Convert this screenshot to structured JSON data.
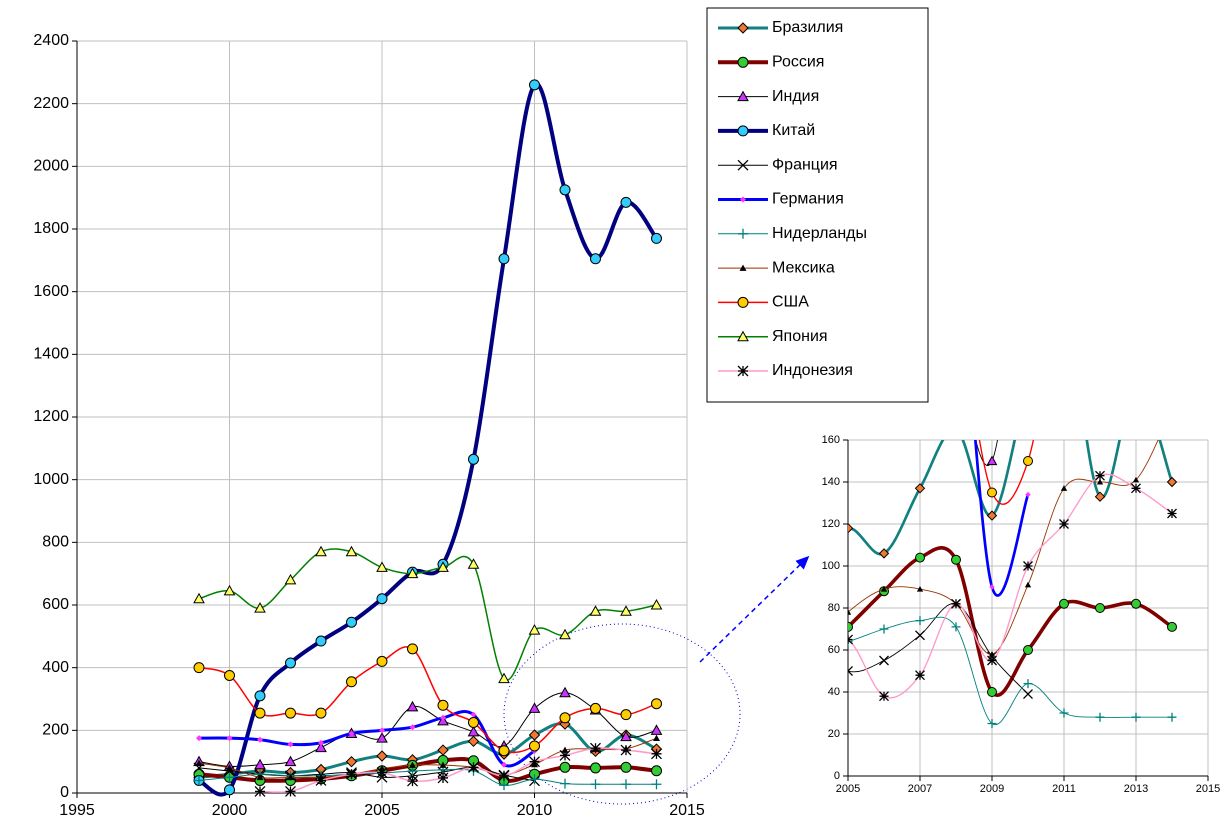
{
  "chart_data": {
    "type": "line",
    "x": [
      1999,
      2000,
      2001,
      2002,
      2003,
      2004,
      2005,
      2006,
      2007,
      2008,
      2009,
      2010,
      2011,
      2012,
      2013,
      2014
    ],
    "series": [
      {
        "name": "Бразилия",
        "color": "#138080",
        "marker": "diamond",
        "marker_color": "#f07830",
        "width": 3,
        "values": [
          50,
          60,
          70,
          65,
          75,
          100,
          118,
          106,
          137,
          165,
          124,
          185,
          220,
          133,
          185,
          140
        ]
      },
      {
        "name": "Россия",
        "color": "#800000",
        "marker": "circle",
        "marker_color": "#33cc33",
        "width": 4,
        "values": [
          60,
          50,
          40,
          40,
          45,
          55,
          71,
          88,
          104,
          103,
          40,
          60,
          82,
          80,
          82,
          71
        ]
      },
      {
        "name": "Индия",
        "color": "#000000",
        "marker": "triangle",
        "marker_color": "#cc33ff",
        "width": 1,
        "values": [
          100,
          85,
          90,
          100,
          145,
          190,
          175,
          275,
          230,
          195,
          150,
          270,
          320,
          265,
          180,
          200
        ]
      },
      {
        "name": "Китай",
        "color": "#000080",
        "marker": "circle",
        "marker_color": "#33ccff",
        "width": 4,
        "values": [
          40,
          10,
          310,
          415,
          485,
          545,
          620,
          705,
          730,
          1065,
          1705,
          2260,
          1925,
          1705,
          1885,
          1770
        ]
      },
      {
        "name": "Франция",
        "color": "#000000",
        "marker": "x",
        "marker_color": "#000000",
        "width": 1,
        "values": [
          80,
          70,
          60,
          55,
          60,
          65,
          50,
          55,
          67,
          82,
          57,
          39,
          null,
          null,
          null,
          null
        ]
      },
      {
        "name": "Германия",
        "color": "#0000ff",
        "marker": "smalldiamond",
        "marker_color": "#ff33ff",
        "width": 3,
        "values": [
          175,
          175,
          170,
          155,
          160,
          190,
          200,
          210,
          240,
          250,
          90,
          134,
          null,
          null,
          null,
          null
        ]
      },
      {
        "name": "Нидерланды",
        "color": "#008080",
        "marker": "plus",
        "marker_color": "#008080",
        "width": 1,
        "values": [
          40,
          50,
          60,
          55,
          55,
          60,
          64,
          70,
          74,
          71,
          25,
          44,
          30,
          28,
          28,
          28
        ]
      },
      {
        "name": "Мексика",
        "color": "#993300",
        "marker": "smalltriangle",
        "marker_color": "#000000",
        "width": 1,
        "values": [
          95,
          80,
          50,
          50,
          50,
          60,
          78,
          89,
          89,
          82,
          58,
          91,
          137,
          140,
          141,
          175
        ]
      },
      {
        "name": "США",
        "color": "#ff0000",
        "marker": "circle",
        "marker_color": "#ffcc00",
        "width": 1.5,
        "values": [
          400,
          375,
          255,
          255,
          255,
          355,
          420,
          460,
          280,
          225,
          135,
          150,
          240,
          270,
          250,
          285
        ]
      },
      {
        "name": "Япония",
        "color": "#008000",
        "marker": "triangle",
        "marker_color": "#ffff66",
        "width": 1.5,
        "values": [
          620,
          645,
          590,
          680,
          770,
          770,
          720,
          700,
          720,
          730,
          365,
          520,
          505,
          580,
          580,
          600
        ]
      },
      {
        "name": "Индонезия",
        "color": "#ff99cc",
        "marker": "star",
        "marker_color": "#000000",
        "width": 1.5,
        "values": [
          null,
          null,
          5,
          5,
          40,
          60,
          65,
          38,
          48,
          82,
          55,
          100,
          120,
          143,
          137,
          125
        ]
      }
    ],
    "xlim": [
      1995,
      2015
    ],
    "ylim": [
      0,
      2400
    ],
    "xticks": [
      1995,
      2000,
      2005,
      2010,
      2015
    ],
    "yticks": [
      0,
      200,
      400,
      600,
      800,
      1000,
      1200,
      1400,
      1600,
      1800,
      2000,
      2200,
      2400
    ],
    "grid": true,
    "inset": {
      "xlim": [
        2005,
        2015
      ],
      "ylim": [
        0,
        160
      ],
      "xticks": [
        2005,
        2007,
        2009,
        2011,
        2013,
        2015
      ],
      "yticks": [
        0,
        20,
        40,
        60,
        80,
        100,
        120,
        140,
        160
      ]
    }
  }
}
